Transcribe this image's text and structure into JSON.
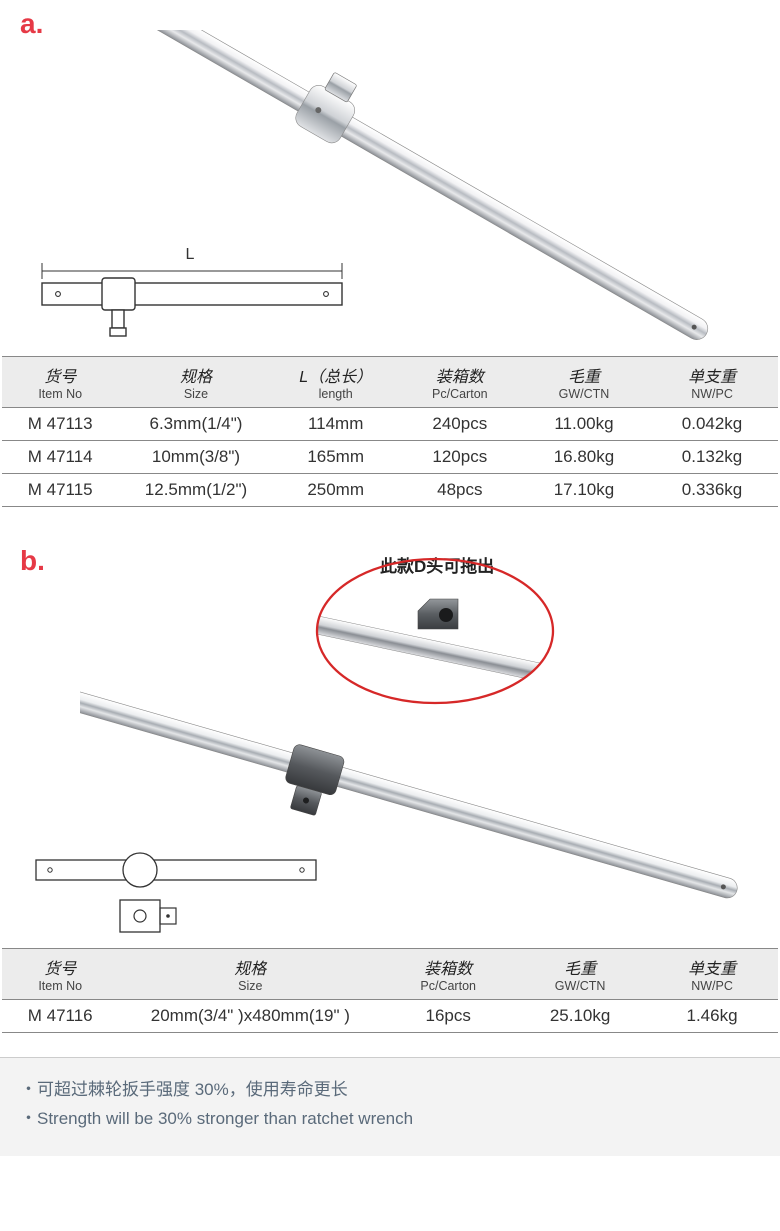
{
  "sectionA": {
    "label": "a."
  },
  "sectionB": {
    "label": "b."
  },
  "callout": {
    "text": "此款D头可拖出"
  },
  "tableA": {
    "columns": [
      {
        "cn": "货号",
        "en": "Item No"
      },
      {
        "cn": "规格",
        "en": "Size"
      },
      {
        "cn": "L（总长）",
        "en": "length"
      },
      {
        "cn": "装箱数",
        "en": "Pc/Carton"
      },
      {
        "cn": "毛重",
        "en": "GW/CTN"
      },
      {
        "cn": "单支重",
        "en": "NW/PC"
      }
    ],
    "rows": [
      [
        "M 47113",
        "6.3mm(1/4\")",
        "114mm",
        "240pcs",
        "11.00kg",
        "0.042kg"
      ],
      [
        "M 47114",
        "10mm(3/8\")",
        "165mm",
        "120pcs",
        "16.80kg",
        "0.132kg"
      ],
      [
        "M 47115",
        "12.5mm(1/2\")",
        "250mm",
        "48pcs",
        "17.10kg",
        "0.336kg"
      ]
    ],
    "widths": [
      "15%",
      "20%",
      "16%",
      "16%",
      "16%",
      "17%"
    ]
  },
  "tableB": {
    "columns": [
      {
        "cn": "货号",
        "en": "Item No"
      },
      {
        "cn": "规格",
        "en": "Size"
      },
      {
        "cn": "装箱数",
        "en": "Pc/Carton"
      },
      {
        "cn": "毛重",
        "en": "GW/CTN"
      },
      {
        "cn": "单支重",
        "en": "NW/PC"
      }
    ],
    "rows": [
      [
        "M 47116",
        "20mm(3/4\" )x480mm(19\" )",
        "16pcs",
        "25.10kg",
        "1.46kg"
      ]
    ],
    "widths": [
      "15%",
      "34%",
      "17%",
      "17%",
      "17%"
    ]
  },
  "notes": {
    "line1": "・可超过棘轮扳手强度 30%，使用寿命更长",
    "line2": "・Strength will be 30% stronger than ratchet wrench"
  },
  "schematicLabel": "L",
  "colors": {
    "accent": "#e63946",
    "calloutRed": "#d62828",
    "headerBg": "#ececec",
    "notesBg": "#f3f3f3",
    "noteText": "#5a6a7a"
  }
}
